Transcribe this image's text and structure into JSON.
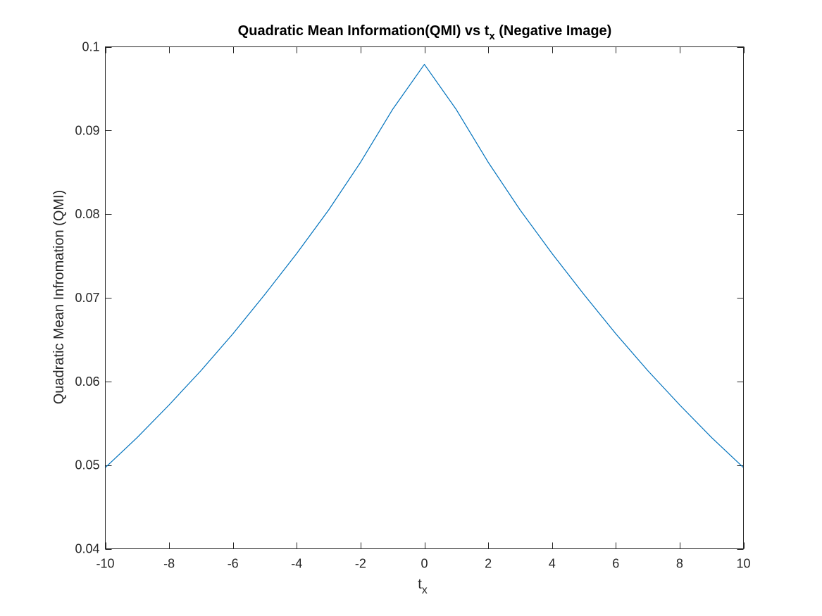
{
  "chart_data": {
    "type": "line",
    "title": "Quadratic Mean Information(QMI) vs t",
    "title_subscript": "x",
    "title_suffix": " (Negative Image)",
    "xlabel": "t",
    "xlabel_subscript": "x",
    "ylabel": "Quadratic Mean Infromation (QMI)",
    "xlim": [
      -10,
      10
    ],
    "ylim": [
      0.04,
      0.1
    ],
    "xticks": [
      "-10",
      "-8",
      "-6",
      "-4",
      "-2",
      "0",
      "2",
      "4",
      "6",
      "8",
      "10"
    ],
    "yticks": [
      "0.04",
      "0.05",
      "0.06",
      "0.07",
      "0.08",
      "0.09",
      "0.1"
    ],
    "grid": false,
    "box": true,
    "series": [
      {
        "color": "#0072BD",
        "x": [
          -10,
          -9,
          -8,
          -7,
          -6,
          -5,
          -4,
          -3,
          -2,
          -1,
          0,
          1,
          2,
          3,
          4,
          5,
          6,
          7,
          8,
          9,
          10
        ],
        "y": [
          0.0497,
          0.0533,
          0.0572,
          0.0613,
          0.0657,
          0.0704,
          0.0753,
          0.0805,
          0.0862,
          0.0925,
          0.0979,
          0.0925,
          0.0862,
          0.0805,
          0.0753,
          0.0704,
          0.0657,
          0.0613,
          0.0572,
          0.0533,
          0.0497
        ]
      }
    ]
  }
}
